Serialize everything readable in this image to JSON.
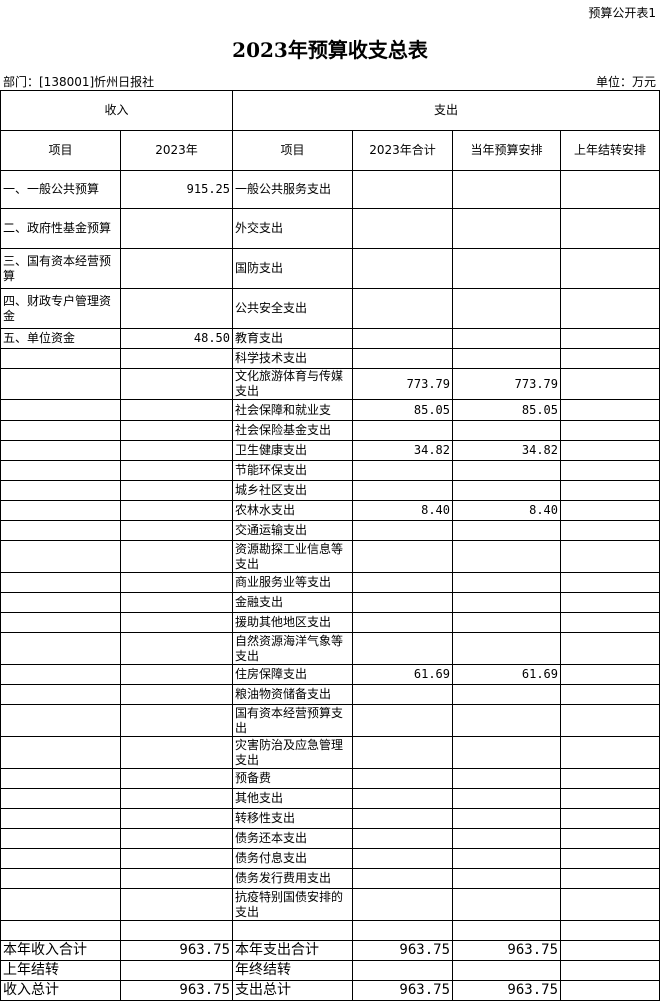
{
  "header": {
    "form_label": "预算公开表1",
    "title": "2023年预算收支总表",
    "department": "部门：[138001]忻州日报社",
    "unit": "单位：万元"
  },
  "table": {
    "group_headers": [
      "收入",
      "支出"
    ],
    "columns": [
      "项目",
      "2023年",
      "项目",
      "2023年合计",
      "当年预算安排",
      "上年结转安排"
    ],
    "rows": [
      [
        "一、一般公共预算",
        "915.25",
        "一般公共服务支出",
        null,
        null,
        null
      ],
      [
        "二、政府性基金预算",
        null,
        "外交支出",
        null,
        null,
        null
      ],
      [
        "三、国有资本经营预算",
        null,
        "国防支出",
        null,
        null,
        null
      ],
      [
        "四、财政专户管理资金",
        null,
        "公共安全支出",
        null,
        null,
        null
      ],
      [
        "五、单位资金",
        "48.50",
        "教育支出",
        null,
        null,
        null
      ],
      [
        null,
        null,
        "科学技术支出",
        null,
        null,
        null
      ],
      [
        null,
        null,
        "文化旅游体育与传媒支出",
        "773.79",
        "773.79",
        null
      ],
      [
        null,
        null,
        "社会保障和就业支",
        "85.05",
        "85.05",
        null
      ],
      [
        null,
        null,
        "社会保险基金支出",
        null,
        null,
        null
      ],
      [
        null,
        null,
        "卫生健康支出",
        "34.82",
        "34.82",
        null
      ],
      [
        null,
        null,
        "节能环保支出",
        null,
        null,
        null
      ],
      [
        null,
        null,
        "城乡社区支出",
        null,
        null,
        null
      ],
      [
        null,
        null,
        "农林水支出",
        "8.40",
        "8.40",
        null
      ],
      [
        null,
        null,
        "交通运输支出",
        null,
        null,
        null
      ],
      [
        null,
        null,
        "资源勘探工业信息等支出",
        null,
        null,
        null
      ],
      [
        null,
        null,
        "商业服务业等支出",
        null,
        null,
        null
      ],
      [
        null,
        null,
        "金融支出",
        null,
        null,
        null
      ],
      [
        null,
        null,
        "援助其他地区支出",
        null,
        null,
        null
      ],
      [
        null,
        null,
        "自然资源海洋气象等支出",
        null,
        null,
        null
      ],
      [
        null,
        null,
        "住房保障支出",
        "61.69",
        "61.69",
        null
      ],
      [
        null,
        null,
        "粮油物资储备支出",
        null,
        null,
        null
      ],
      [
        null,
        null,
        "国有资本经营预算支出",
        null,
        null,
        null
      ],
      [
        null,
        null,
        "灾害防治及应急管理支出",
        null,
        null,
        null
      ],
      [
        null,
        null,
        "预备费",
        null,
        null,
        null
      ],
      [
        null,
        null,
        "其他支出",
        null,
        null,
        null
      ],
      [
        null,
        null,
        "转移性支出",
        null,
        null,
        null
      ],
      [
        null,
        null,
        "债务还本支出",
        null,
        null,
        null
      ],
      [
        null,
        null,
        "债务付息支出",
        null,
        null,
        null
      ],
      [
        null,
        null,
        "债务发行费用支出",
        null,
        null,
        null
      ],
      [
        null,
        null,
        "抗疫特别国债安排的支出",
        null,
        null,
        null
      ],
      [
        null,
        null,
        null,
        null,
        null,
        null
      ],
      [
        "本年收入合计",
        "963.75",
        "本年支出合计",
        "963.75",
        "963.75",
        null
      ],
      [
        "上年结转",
        null,
        "年终结转",
        null,
        null,
        null
      ],
      [
        "收入总计",
        "963.75",
        "支出总计",
        "963.75",
        "963.75",
        null
      ]
    ]
  }
}
